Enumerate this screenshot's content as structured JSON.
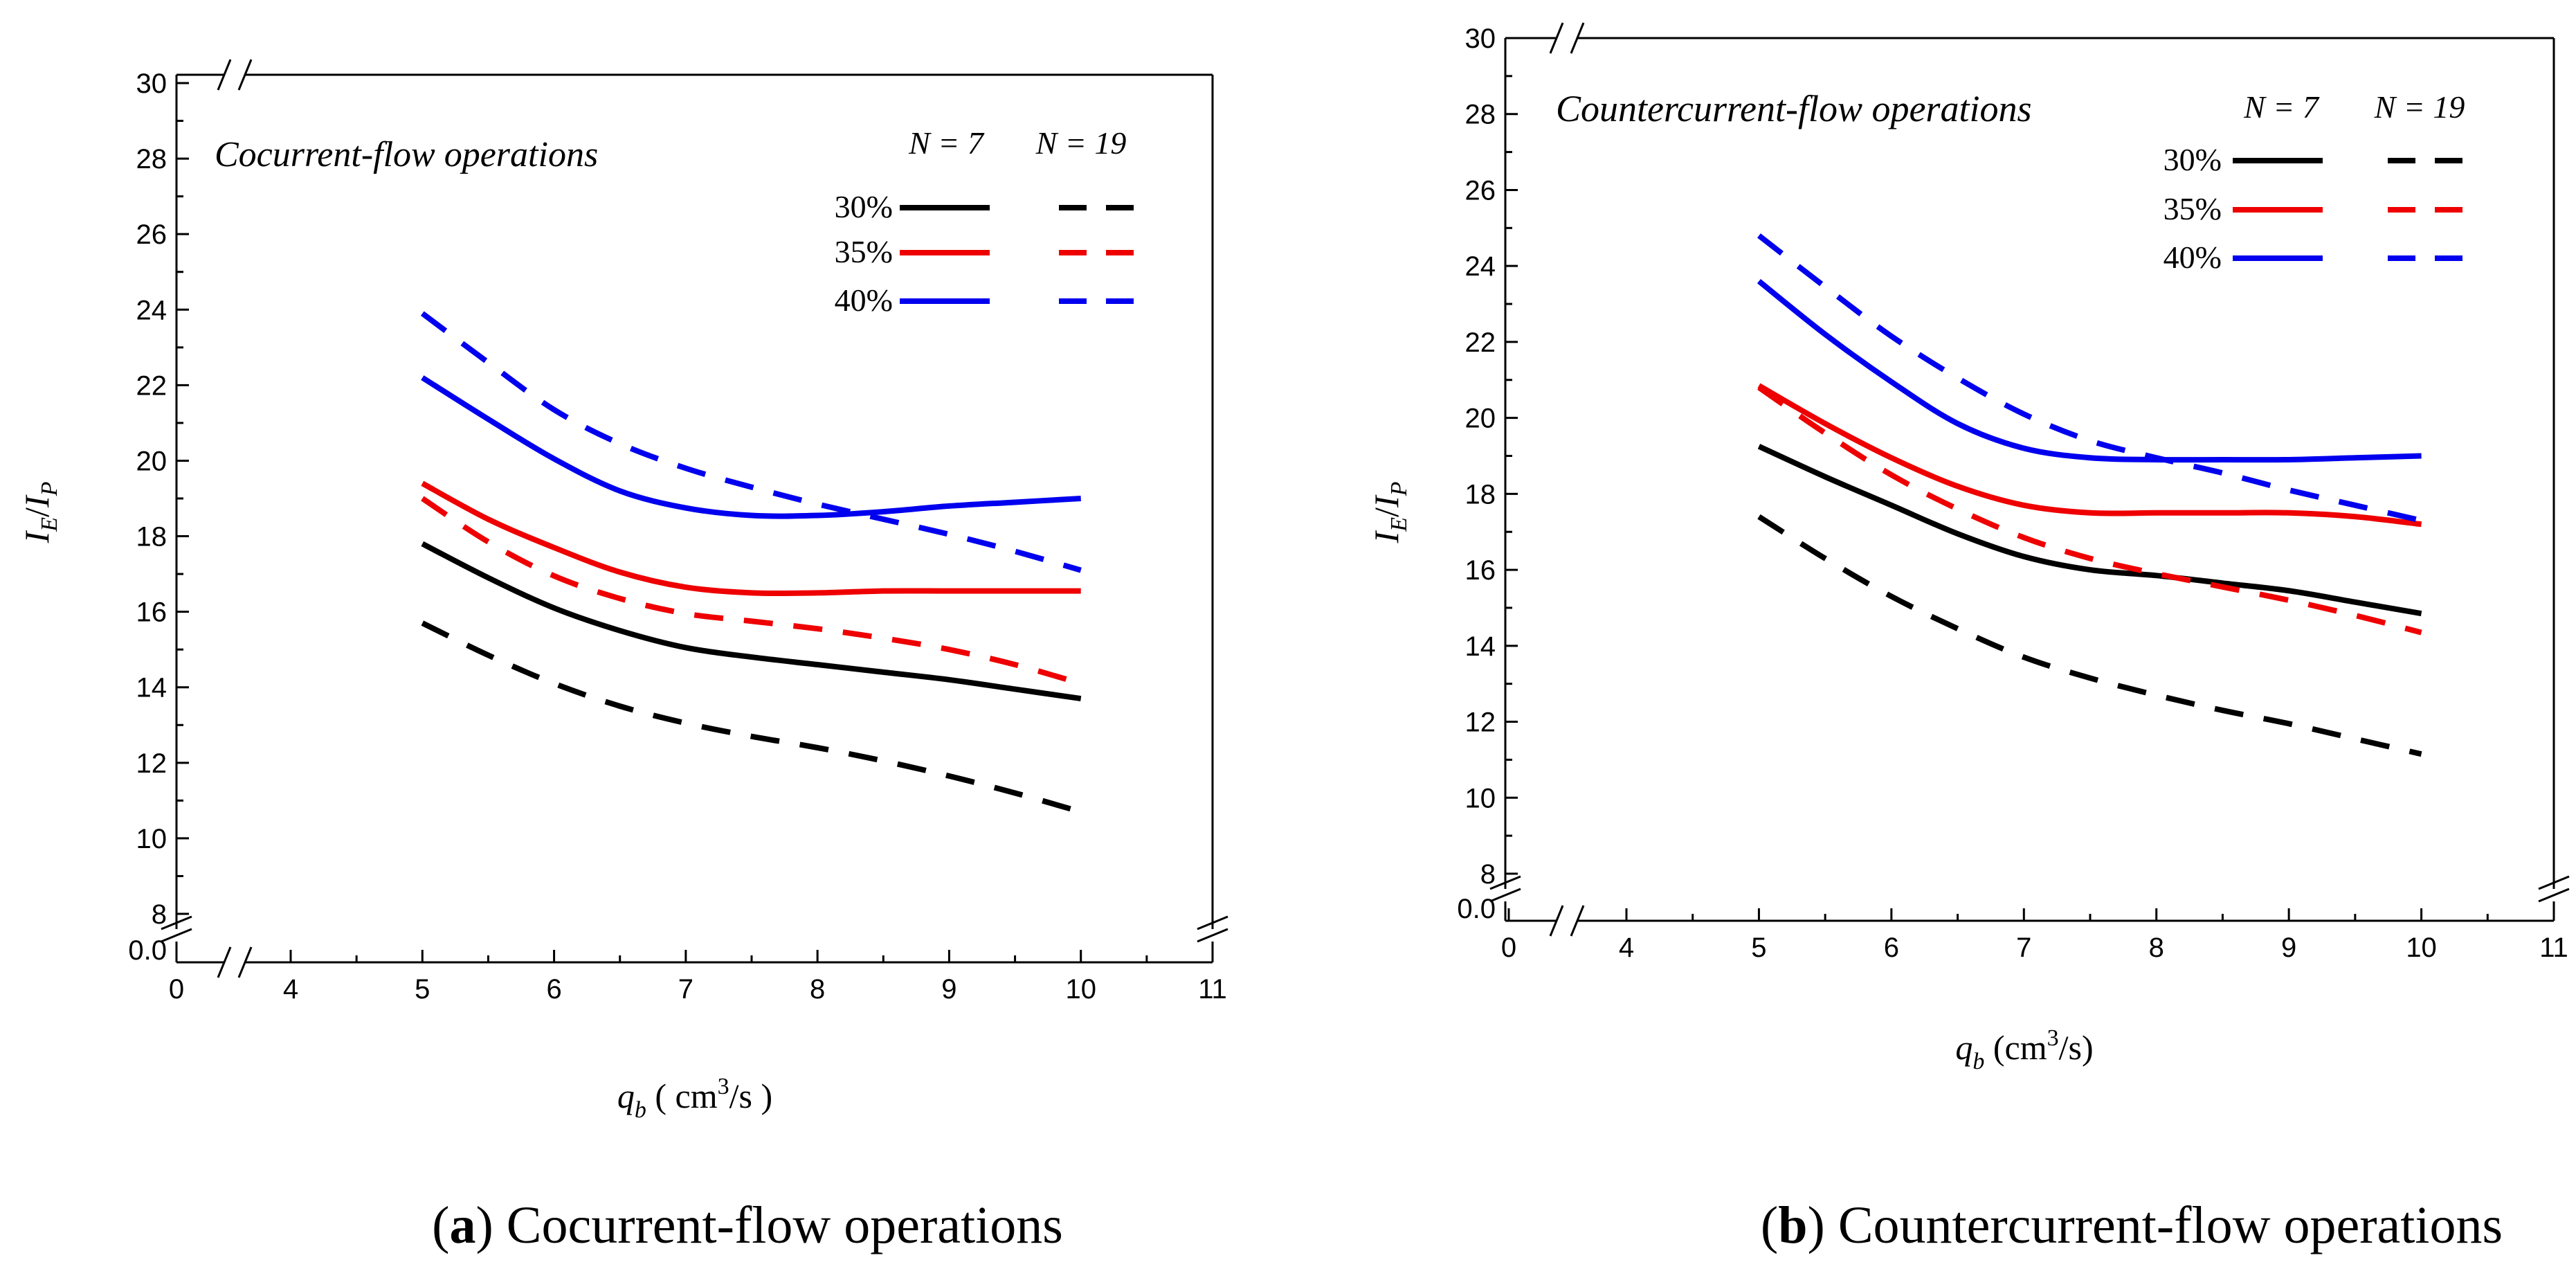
{
  "chart_data": [
    {
      "type": "line",
      "panel_letter": "a",
      "caption": "Cocurrent-flow operations",
      "inset_title": "Cocurrent-flow operations",
      "xlabel_var": "q",
      "xlabel_sub": "b",
      "xlabel_unit_open": " ( cm",
      "xlabel_unit_sup": "3",
      "xlabel_unit_close": "/s )",
      "ylabel_num": "I",
      "ylabel_num_sub": "E",
      "ylabel_sep": "/",
      "ylabel_den": "I",
      "ylabel_den_sub": "P",
      "x_ticks": [
        "0",
        "4",
        "5",
        "6",
        "7",
        "8",
        "9",
        "10",
        "11"
      ],
      "y_ticks": [
        "8",
        "10",
        "12",
        "14",
        "16",
        "18",
        "20",
        "22",
        "24",
        "26",
        "28",
        "30"
      ],
      "y_break_label": "0.0",
      "xlim": [
        4,
        11
      ],
      "ylim": [
        8,
        30
      ],
      "legend": {
        "col_headers": [
          "N = 7",
          "N = 19"
        ],
        "rows": [
          "30%",
          "35%",
          "40%"
        ]
      },
      "x": [
        5,
        5.5,
        6,
        6.5,
        7,
        7.5,
        8,
        8.5,
        9,
        9.5,
        10
      ],
      "series": [
        {
          "name": "30%, N = 7",
          "color": "#000000",
          "dash": "solid",
          "values": [
            17.8,
            16.9,
            16.1,
            15.5,
            15.05,
            14.8,
            14.6,
            14.4,
            14.2,
            13.95,
            13.7
          ]
        },
        {
          "name": "30%, N = 19",
          "color": "#000000",
          "dash": "dashed",
          "values": [
            15.7,
            14.85,
            14.1,
            13.5,
            13.05,
            12.7,
            12.4,
            12.05,
            11.65,
            11.2,
            10.7
          ]
        },
        {
          "name": "35%, N = 7",
          "color": "#ee0000",
          "dash": "solid",
          "values": [
            19.4,
            18.45,
            17.7,
            17.05,
            16.65,
            16.5,
            16.5,
            16.55,
            16.55,
            16.55,
            16.55
          ]
        },
        {
          "name": "35%, N = 19",
          "color": "#ee0000",
          "dash": "dashed",
          "values": [
            19.0,
            17.85,
            16.95,
            16.35,
            15.95,
            15.75,
            15.55,
            15.3,
            15.0,
            14.6,
            14.1
          ]
        },
        {
          "name": "40%, N = 7",
          "color": "#0000ee",
          "dash": "solid",
          "values": [
            22.2,
            21.1,
            20.05,
            19.2,
            18.75,
            18.55,
            18.55,
            18.65,
            18.8,
            18.9,
            19.0
          ]
        },
        {
          "name": "40%, N = 19",
          "color": "#0000ee",
          "dash": "dashed",
          "values": [
            23.9,
            22.6,
            21.35,
            20.45,
            19.8,
            19.3,
            18.85,
            18.45,
            18.05,
            17.6,
            17.1
          ]
        }
      ]
    },
    {
      "type": "line",
      "panel_letter": "b",
      "caption": "Countercurrent-flow operations",
      "inset_title": "Countercurrent-flow operations",
      "xlabel_var": "q",
      "xlabel_sub": "b",
      "xlabel_unit_open": " (cm",
      "xlabel_unit_sup": "3",
      "xlabel_unit_close": "/s)",
      "ylabel_num": "I",
      "ylabel_num_sub": "E",
      "ylabel_sep": "/",
      "ylabel_den": "I",
      "ylabel_den_sub": "P",
      "x_ticks": [
        "0",
        "4",
        "5",
        "6",
        "7",
        "8",
        "9",
        "10",
        "11"
      ],
      "y_ticks": [
        "8",
        "10",
        "12",
        "14",
        "16",
        "18",
        "20",
        "22",
        "24",
        "26",
        "28",
        "30"
      ],
      "y_break_label": "0.0",
      "xlim": [
        4,
        11
      ],
      "ylim": [
        8,
        30
      ],
      "legend": {
        "col_headers": [
          "N = 7",
          "N = 19"
        ],
        "rows": [
          "30%",
          "35%",
          "40%"
        ]
      },
      "x": [
        5,
        5.5,
        6,
        6.5,
        7,
        7.5,
        8,
        8.5,
        9,
        9.5,
        10
      ],
      "series": [
        {
          "name": "30%, N = 7",
          "color": "#000000",
          "dash": "solid",
          "values": [
            19.25,
            18.45,
            17.7,
            16.95,
            16.35,
            16.0,
            15.85,
            15.65,
            15.45,
            15.15,
            14.85
          ]
        },
        {
          "name": "30%, N = 19",
          "color": "#000000",
          "dash": "dashed",
          "values": [
            17.4,
            16.3,
            15.3,
            14.45,
            13.7,
            13.15,
            12.7,
            12.3,
            11.95,
            11.55,
            11.15
          ]
        },
        {
          "name": "35%, N = 7",
          "color": "#ee0000",
          "dash": "solid",
          "values": [
            20.85,
            19.85,
            18.95,
            18.2,
            17.7,
            17.5,
            17.5,
            17.5,
            17.5,
            17.4,
            17.2
          ]
        },
        {
          "name": "35%, N = 19",
          "color": "#ee0000",
          "dash": "dashed",
          "values": [
            20.8,
            19.6,
            18.5,
            17.6,
            16.85,
            16.3,
            15.9,
            15.55,
            15.2,
            14.8,
            14.35
          ]
        },
        {
          "name": "40%, N = 7",
          "color": "#0000ee",
          "dash": "solid",
          "values": [
            23.6,
            22.2,
            20.95,
            19.85,
            19.2,
            18.95,
            18.9,
            18.9,
            18.9,
            18.95,
            19.0
          ]
        },
        {
          "name": "40%, N = 19",
          "color": "#0000ee",
          "dash": "dashed",
          "values": [
            24.8,
            23.45,
            22.15,
            21.05,
            20.1,
            19.4,
            18.95,
            18.55,
            18.1,
            17.7,
            17.3
          ]
        }
      ]
    }
  ]
}
